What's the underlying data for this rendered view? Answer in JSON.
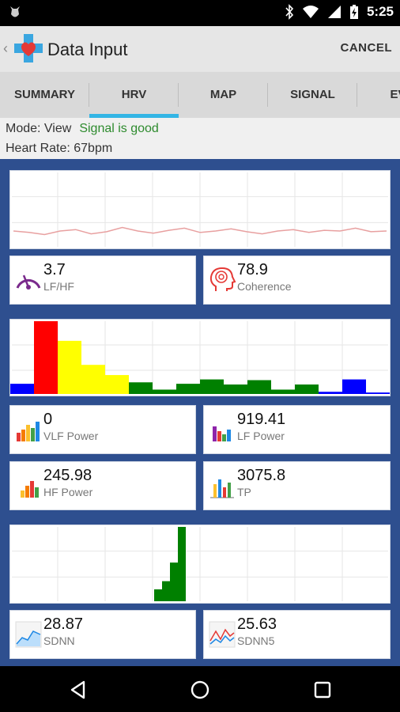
{
  "status": {
    "time": "5:25"
  },
  "app": {
    "title": "Data Input",
    "cancel_label": "CANCEL"
  },
  "tabs": [
    {
      "label": "SUMMARY",
      "active": false
    },
    {
      "label": "HRV",
      "active": true
    },
    {
      "label": "MAP",
      "active": false
    },
    {
      "label": "SIGNAL",
      "active": false
    },
    {
      "label": "EVE",
      "active": false
    }
  ],
  "info": {
    "mode": "Mode: View",
    "signal": "Signal is good",
    "heart_rate": "Heart Rate: 67bpm"
  },
  "metrics": {
    "lf_hf": {
      "value": "3.7",
      "label": "LF/HF"
    },
    "coherence": {
      "value": "78.9",
      "label": "Coherence"
    },
    "vlf_power": {
      "value": "0",
      "label": "VLF Power"
    },
    "lf_power": {
      "value": "919.41",
      "label": "LF Power"
    },
    "hf_power": {
      "value": "245.98",
      "label": "HF Power"
    },
    "tp": {
      "value": "3075.8",
      "label": "TP"
    },
    "sdnn": {
      "value": "28.87",
      "label": "SDNN"
    },
    "sdnn5": {
      "value": "25.63",
      "label": "SDNN5"
    }
  },
  "chart_data": [
    {
      "type": "line",
      "series": [
        {
          "color": "#e8a0a0",
          "values": [
            0.2,
            0.18,
            0.15,
            0.2,
            0.22,
            0.16,
            0.19,
            0.25,
            0.2,
            0.17,
            0.21,
            0.24,
            0.18,
            0.2,
            0.23,
            0.19,
            0.16,
            0.2,
            0.22,
            0.18,
            0.21,
            0.2,
            0.24,
            0.19,
            0.2
          ]
        }
      ],
      "ylim": [
        0,
        1
      ]
    },
    {
      "type": "bar",
      "values": [
        0.14,
        1.0,
        0.73,
        0.4,
        0.26,
        0.16,
        0.06,
        0.14,
        0.2,
        0.13,
        0.19,
        0.06,
        0.13,
        0.03,
        0.2,
        0.02
      ],
      "colors": [
        "#0000ff",
        "#ff0000",
        "#ffff00",
        "#ffff00",
        "#ffff00",
        "#008000",
        "#008000",
        "#008000",
        "#008000",
        "#008000",
        "#008000",
        "#008000",
        "#008000",
        "#0000ff",
        "#0000ff",
        "#0000ff"
      ],
      "ylim": [
        0,
        1
      ]
    },
    {
      "type": "bar",
      "values": [
        0.16,
        0.27,
        0.52,
        1.0
      ],
      "colors": [
        "#008000",
        "#008000",
        "#008000",
        "#008000"
      ],
      "ylim": [
        0,
        1
      ]
    }
  ]
}
